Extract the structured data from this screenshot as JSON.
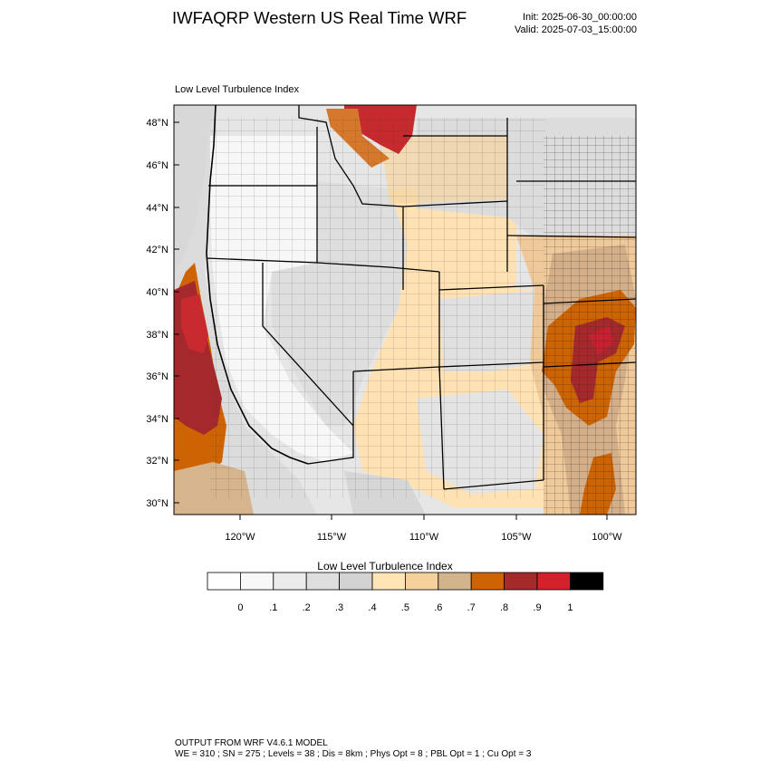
{
  "header": {
    "title": "IWFAQRP Western US Real Time WRF",
    "init": "Init: 2025-06-30_00:00:00",
    "valid": "Valid: 2025-07-03_15:00:00"
  },
  "map": {
    "field_label": "Low Level Turbulence Index",
    "lat_ticks": [
      "48°N",
      "46°N",
      "44°N",
      "42°N",
      "40°N",
      "38°N",
      "36°N",
      "34°N",
      "32°N",
      "30°N"
    ],
    "lon_ticks": [
      "120°W",
      "115°W",
      "110°W",
      "105°W",
      "100°W"
    ],
    "colors": {
      "ocean_gray": "#e3e3e3",
      "light_gray": "#d6d6d6",
      "white": "#f9f9f9",
      "light_orange": "#ffe0b2",
      "tan": "#f5d4a0",
      "dark_tan": "#d9b08c",
      "orange": "#cd6302",
      "dark_red": "#a52a2a",
      "red": "#d0232a"
    }
  },
  "colorbar": {
    "title": "Low Level Turbulence Index",
    "labels": [
      "0",
      ".1",
      ".2",
      ".3",
      ".4",
      ".5",
      ".6",
      ".7",
      ".8",
      ".9",
      "1"
    ],
    "colors": [
      "#ffffff",
      "#f7f7f7",
      "#ebebeb",
      "#dedede",
      "#d2d2d2",
      "#ffe4b5",
      "#f5d09a",
      "#d2b48c",
      "#cd6302",
      "#a52a2a",
      "#d4202a",
      "#000000"
    ]
  },
  "footer": {
    "line1": "OUTPUT FROM WRF V4.6.1 MODEL",
    "line2": "WE = 310 ; SN = 275 ; Levels = 38 ; Dis = 8km ; Phys Opt = 8 ; PBL Opt = 1 ; Cu Opt = 3"
  }
}
